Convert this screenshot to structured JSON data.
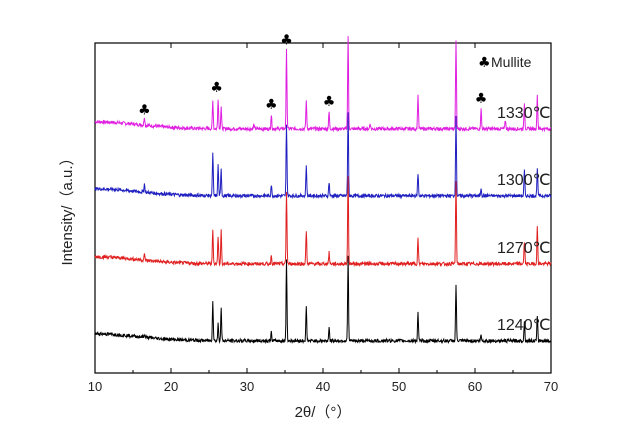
{
  "chart_data": {
    "type": "line",
    "title": "",
    "xlabel": "2θ/（°）",
    "ylabel": "Intensity/（a.u.）",
    "xlim": [
      10,
      70
    ],
    "xticks": [
      10,
      20,
      30,
      40,
      50,
      60,
      70
    ],
    "grid": false,
    "legend": {
      "marker": "♣",
      "label": "Mullite",
      "placement": "top-right"
    },
    "series": [
      {
        "name": "1330℃",
        "color": "#e020e0",
        "baseline": 0.15,
        "hump": 0.25,
        "peaks": [
          [
            16.5,
            0.3
          ],
          [
            25.5,
            1.0
          ],
          [
            26.2,
            1.1
          ],
          [
            26.6,
            0.8
          ],
          [
            30.9,
            0.15
          ],
          [
            33.2,
            0.5
          ],
          [
            35.2,
            2.8
          ],
          [
            37.8,
            1.0
          ],
          [
            40.8,
            0.6
          ],
          [
            43.3,
            3.3
          ],
          [
            46.2,
            0.2
          ],
          [
            52.5,
            1.2
          ],
          [
            57.5,
            3.1
          ],
          [
            60.8,
            0.7
          ],
          [
            64.0,
            0.3
          ],
          [
            66.5,
            0.9
          ],
          [
            68.2,
            1.2
          ]
        ],
        "mullite_markers": [
          16.5,
          26.0,
          33.2,
          35.2,
          40.8,
          60.8
        ]
      },
      {
        "name": "1300℃",
        "color": "#2020c0",
        "baseline": 0.15,
        "hump": 0.25,
        "peaks": [
          [
            16.5,
            0.3
          ],
          [
            25.5,
            1.5
          ],
          [
            26.2,
            1.1
          ],
          [
            26.6,
            1.0
          ],
          [
            33.2,
            0.4
          ],
          [
            35.2,
            2.6
          ],
          [
            37.8,
            1.1
          ],
          [
            40.8,
            0.5
          ],
          [
            43.3,
            3.0
          ],
          [
            52.5,
            0.8
          ],
          [
            57.5,
            2.8
          ],
          [
            60.8,
            0.3
          ],
          [
            66.5,
            0.9
          ],
          [
            68.2,
            1.0
          ]
        ],
        "mullite_markers": []
      },
      {
        "name": "1270℃",
        "color": "#e02020",
        "baseline": 0.15,
        "hump": 0.25,
        "peaks": [
          [
            16.5,
            0.2
          ],
          [
            25.5,
            1.2
          ],
          [
            26.2,
            1.0
          ],
          [
            26.6,
            1.2
          ],
          [
            33.2,
            0.3
          ],
          [
            35.2,
            2.6
          ],
          [
            37.8,
            1.2
          ],
          [
            40.8,
            0.4
          ],
          [
            43.3,
            3.1
          ],
          [
            52.5,
            0.9
          ],
          [
            57.5,
            2.9
          ],
          [
            66.5,
            0.8
          ],
          [
            68.2,
            1.3
          ]
        ],
        "mullite_markers": []
      },
      {
        "name": "1240℃",
        "color": "#000000",
        "baseline": 0.15,
        "hump": 0.25,
        "peaks": [
          [
            16.5,
            0.1
          ],
          [
            25.5,
            1.4
          ],
          [
            26.2,
            0.6
          ],
          [
            26.6,
            1.2
          ],
          [
            33.2,
            0.3
          ],
          [
            35.2,
            2.9
          ],
          [
            37.8,
            1.2
          ],
          [
            40.8,
            0.5
          ],
          [
            43.3,
            3.0
          ],
          [
            52.5,
            1.0
          ],
          [
            57.5,
            2.0
          ],
          [
            60.8,
            0.2
          ],
          [
            66.5,
            0.7
          ],
          [
            68.2,
            0.9
          ]
        ],
        "mullite_markers": []
      }
    ]
  }
}
